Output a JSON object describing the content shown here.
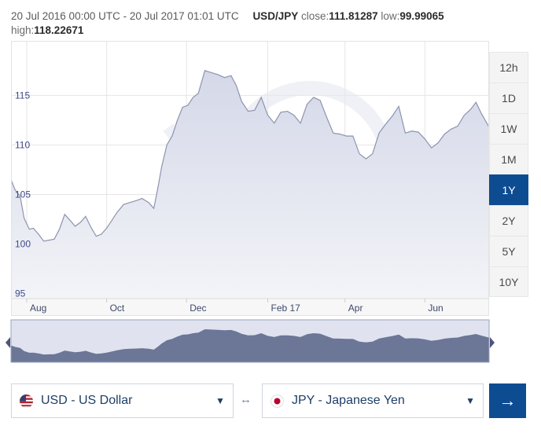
{
  "header": {
    "range": "20 Jul 2016 00:00 UTC - 20 Jul 2017 01:01 UTC",
    "pair": "USD/JPY",
    "close_label": "close:",
    "close_value": "111.81287",
    "low_label": "low:",
    "low_value": "99.99065",
    "high_label": "high:",
    "high_value": "118.22671"
  },
  "range_buttons": [
    {
      "label": "12h",
      "active": false
    },
    {
      "label": "1D",
      "active": false
    },
    {
      "label": "1W",
      "active": false
    },
    {
      "label": "1M",
      "active": false
    },
    {
      "label": "1Y",
      "active": true
    },
    {
      "label": "2Y",
      "active": false
    },
    {
      "label": "5Y",
      "active": false
    },
    {
      "label": "10Y",
      "active": false
    }
  ],
  "converter": {
    "from_label": "USD - US Dollar",
    "to_label": "JPY - Japanese Yen",
    "swap_icon": "↔",
    "go_icon": "→"
  },
  "colors": {
    "accent": "#0e4c92",
    "area_fill": "#dfe2ee",
    "line": "#8d93ad",
    "nav_fill": "#6a7491"
  },
  "chart_data": {
    "type": "area",
    "series": [
      {
        "x": [
          "2016-07-20",
          "2016-07-23",
          "2016-07-27",
          "2016-07-30",
          "2016-08-03",
          "2016-08-06",
          "2016-08-10",
          "2016-08-14",
          "2016-08-18",
          "2016-08-22",
          "2016-08-26",
          "2016-08-30",
          "2016-09-03",
          "2016-09-07",
          "2016-09-11",
          "2016-09-15",
          "2016-09-19",
          "2016-09-23",
          "2016-09-27",
          "2016-10-01",
          "2016-10-05",
          "2016-10-09",
          "2016-10-14",
          "2016-10-19",
          "2016-10-24",
          "2016-10-28",
          "2016-11-02",
          "2016-11-06",
          "2016-11-09",
          "2016-11-12",
          "2016-11-16",
          "2016-11-20",
          "2016-11-24",
          "2016-11-28",
          "2016-12-02",
          "2016-12-06",
          "2016-12-10",
          "2016-12-15",
          "2016-12-20",
          "2016-12-25",
          "2016-12-30",
          "2017-01-04",
          "2017-01-08",
          "2017-01-12",
          "2017-01-17",
          "2017-01-22",
          "2017-01-27",
          "2017-02-01",
          "2017-02-06",
          "2017-02-11",
          "2017-02-16",
          "2017-02-21",
          "2017-02-26",
          "2017-03-03",
          "2017-03-08",
          "2017-03-13",
          "2017-03-18",
          "2017-03-23",
          "2017-03-28",
          "2017-04-02",
          "2017-04-07",
          "2017-04-12",
          "2017-04-17",
          "2017-04-22",
          "2017-04-27",
          "2017-05-02",
          "2017-05-07",
          "2017-05-12",
          "2017-05-17",
          "2017-05-22",
          "2017-05-27",
          "2017-06-01",
          "2017-06-06",
          "2017-06-11",
          "2017-06-16",
          "2017-06-21",
          "2017-06-26",
          "2017-07-01",
          "2017-07-06",
          "2017-07-10",
          "2017-07-14",
          "2017-07-20"
        ],
        "values": [
          106.5,
          105.5,
          104.8,
          102.6,
          101.5,
          101.6,
          101.0,
          100.3,
          100.4,
          100.5,
          101.5,
          103.0,
          102.4,
          101.8,
          102.2,
          102.8,
          101.7,
          100.8,
          101.0,
          101.6,
          102.4,
          103.2,
          104.0,
          104.2,
          104.4,
          104.6,
          104.2,
          103.6,
          105.6,
          107.8,
          110.0,
          110.9,
          112.5,
          113.8,
          114.0,
          114.8,
          115.2,
          117.5,
          117.3,
          117.1,
          116.8,
          117.0,
          116.0,
          114.4,
          113.4,
          113.5,
          114.8,
          113.0,
          112.2,
          113.3,
          113.4,
          113.0,
          112.2,
          114.1,
          114.8,
          114.5,
          112.8,
          111.2,
          111.1,
          110.9,
          110.9,
          109.1,
          108.6,
          109.1,
          111.2,
          112.1,
          112.9,
          113.9,
          111.2,
          111.4,
          111.3,
          110.6,
          109.7,
          110.2,
          111.1,
          111.6,
          111.9,
          113.0,
          113.6,
          114.3,
          113.2,
          111.8
        ]
      }
    ],
    "xlabel": "",
    "ylabel": "",
    "y_ticks": [
      95,
      100,
      105,
      110,
      115
    ],
    "ylim": [
      94.5,
      120.5
    ],
    "xlim": [
      "2016-07-20",
      "2017-07-20"
    ],
    "x_ticks": [
      {
        "label": "Aug",
        "date": "2016-08-01"
      },
      {
        "label": "Oct",
        "date": "2016-10-01"
      },
      {
        "label": "Dec",
        "date": "2016-12-01"
      },
      {
        "label": "Feb 17",
        "date": "2017-02-01"
      },
      {
        "label": "Apr",
        "date": "2017-04-01"
      },
      {
        "label": "Jun",
        "date": "2017-06-01"
      }
    ],
    "grid": true
  }
}
